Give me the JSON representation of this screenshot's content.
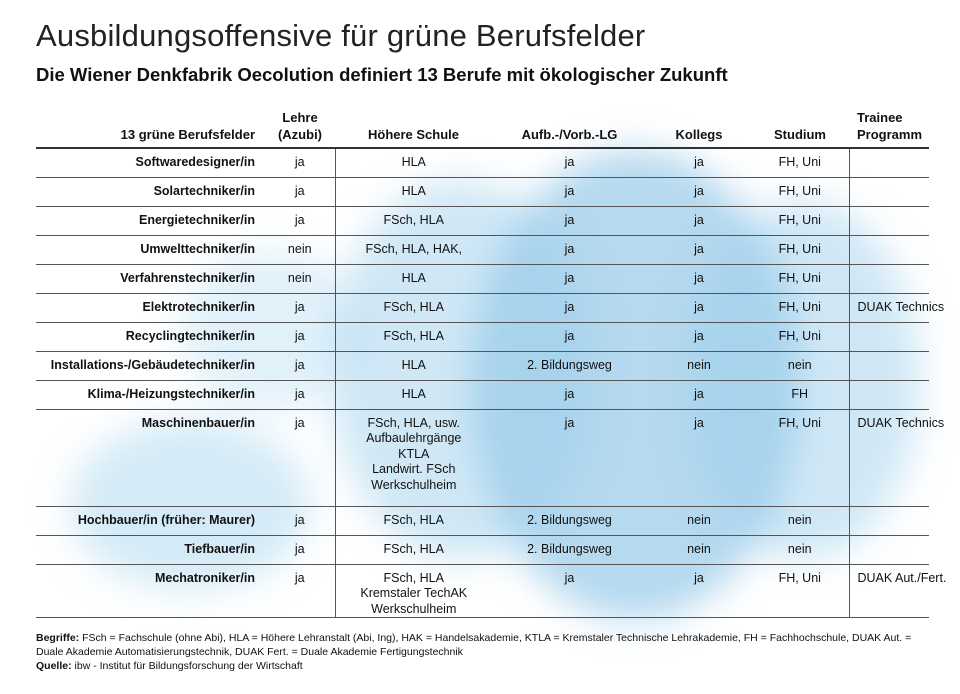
{
  "header": {
    "title": "Ausbildungsoffensive für grüne Berufsfelder",
    "subtitle": "Die Wiener Denkfabrik Oecolution definiert 13 Berufe mit ökologischer Zukunft"
  },
  "table": {
    "columns": [
      "13 grüne Berufsfelder",
      "Lehre\n(Azubi)",
      "Höhere Schule",
      "Aufb.-/Vorb.-LG",
      "Kollegs",
      "Studium",
      "Trainee\nProgramm"
    ],
    "rows": [
      [
        "Softwaredesigner/in",
        "ja",
        "HLA",
        "ja",
        "ja",
        "FH, Uni",
        ""
      ],
      [
        "Solartechniker/in",
        "ja",
        "HLA",
        "ja",
        "ja",
        "FH, Uni",
        ""
      ],
      [
        "Energietechniker/in",
        "ja",
        "FSch, HLA",
        "ja",
        "ja",
        "FH, Uni",
        ""
      ],
      [
        "Umwelttechniker/in",
        "nein",
        "FSch, HLA, HAK,",
        "ja",
        "ja",
        "FH, Uni",
        ""
      ],
      [
        "Verfahrenstechniker/in",
        "nein",
        "HLA",
        "ja",
        "ja",
        "FH, Uni",
        ""
      ],
      [
        "Elektrotechniker/in",
        "ja",
        "FSch, HLA",
        "ja",
        "ja",
        "FH, Uni",
        "DUAK Technics"
      ],
      [
        "Recyclingtechniker/in",
        "ja",
        "FSch, HLA",
        "ja",
        "ja",
        "FH, Uni",
        ""
      ],
      [
        "Installations-/Gebäudetechniker/in",
        "ja",
        "HLA",
        "2. Bildungsweg",
        "nein",
        "nein",
        ""
      ],
      [
        "Klima-/Heizungstechniker/in",
        "ja",
        "HLA",
        "ja",
        "ja",
        "FH",
        ""
      ],
      [
        "Maschinenbauer/in",
        "ja",
        "FSch, HLA, usw.\nAufbaulehrgänge\nKTLA\nLandwirt. FSch\nWerkschulheim",
        "ja",
        "ja",
        "FH, Uni",
        "DUAK Technics"
      ],
      [
        "Hochbauer/in (früher: Maurer)",
        "ja",
        "FSch, HLA",
        "2. Bildungsweg",
        "nein",
        "nein",
        ""
      ],
      [
        "Tiefbauer/in",
        "ja",
        "FSch, HLA",
        "2. Bildungsweg",
        "nein",
        "nein",
        ""
      ],
      [
        "Mechatroniker/in",
        "ja",
        "FSch, HLA\nKremstaler TechAK\nWerkschulheim",
        "ja",
        "ja",
        "FH, Uni",
        "DUAK Aut./Fert."
      ]
    ]
  },
  "footer": {
    "begriffe_label": "Begriffe:",
    "begriffe_text": "FSch = Fachschule (ohne Abi), HLA = Höhere Lehranstalt (Abi, Ing), HAK = Handelsakademie, KTLA = Kremstaler Technische Lehrakademie, FH = Fachhochschule, DUAK Aut. = Duale Akademie Automatisierungstechnik, DUAK Fert. = Duale Akademie Fertigungstechnik",
    "quelle_label": "Quelle:",
    "quelle_text": "ibw - Institut für Bildungsforschung der Wirtschaft"
  },
  "colors": {
    "watercolor": "#9fcfe8",
    "rule": "#333333"
  }
}
